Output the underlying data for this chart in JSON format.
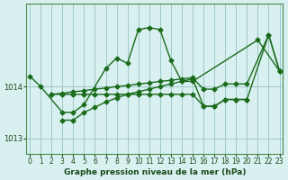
{
  "bg_color": "#d8f0f0",
  "grid_color": "#a0c8c8",
  "line_color": "#1a6b1a",
  "marker_color": "#1a6b1a",
  "xlabel": "Graphe pression niveau de la mer (hPa)",
  "xlabel_color": "#1a4a1a",
  "ylabel_color": "#1a4a1a",
  "xlim": [
    0,
    23
  ],
  "ylim": [
    1012.7,
    1015.6
  ],
  "yticks": [
    1013,
    1014
  ],
  "xticks": [
    0,
    1,
    2,
    3,
    4,
    5,
    6,
    7,
    8,
    9,
    10,
    11,
    12,
    13,
    14,
    15,
    16,
    17,
    18,
    19,
    20,
    21,
    22,
    23
  ],
  "s1_x": [
    0,
    1,
    3,
    4,
    5,
    7,
    8,
    9,
    10,
    11,
    12,
    13,
    14,
    15,
    21,
    23
  ],
  "s1_y": [
    1014.2,
    1014.0,
    1013.5,
    1013.5,
    1013.65,
    1014.35,
    1014.55,
    1014.45,
    1015.1,
    1015.14,
    1015.1,
    1014.5,
    1014.1,
    1014.1,
    1014.9,
    1014.3
  ],
  "s2_x": [
    2,
    3,
    4,
    5,
    6,
    7,
    8,
    9,
    10,
    11,
    12,
    13,
    14,
    15,
    16,
    17,
    18,
    19,
    20
  ],
  "s2_y": [
    1013.85,
    1013.85,
    1013.85,
    1013.85,
    1013.85,
    1013.85,
    1013.85,
    1013.85,
    1013.85,
    1013.85,
    1013.85,
    1013.85,
    1013.85,
    1013.85,
    1013.62,
    1013.62,
    1013.75,
    1013.75,
    1013.75
  ],
  "s3_x": [
    2,
    3,
    4,
    5,
    6,
    7,
    8,
    9,
    10,
    11,
    12,
    13,
    14,
    15,
    16,
    17,
    18,
    19,
    20,
    22,
    23
  ],
  "s3_y": [
    1013.85,
    1013.87,
    1013.9,
    1013.92,
    1013.95,
    1013.97,
    1014.0,
    1014.02,
    1014.05,
    1014.07,
    1014.1,
    1014.12,
    1014.15,
    1014.17,
    1013.95,
    1013.95,
    1014.05,
    1014.05,
    1014.05,
    1015.0,
    1014.3
  ],
  "s4_x": [
    3,
    4,
    5,
    6,
    7,
    8,
    9,
    10,
    11,
    12,
    13,
    14,
    15,
    16,
    17,
    18,
    19,
    20,
    22,
    23
  ],
  "s4_y": [
    1013.35,
    1013.35,
    1013.5,
    1013.6,
    1013.7,
    1013.78,
    1013.85,
    1013.9,
    1013.95,
    1014.0,
    1014.05,
    1014.1,
    1014.15,
    1013.62,
    1013.62,
    1013.75,
    1013.75,
    1013.75,
    1015.0,
    1014.3
  ]
}
